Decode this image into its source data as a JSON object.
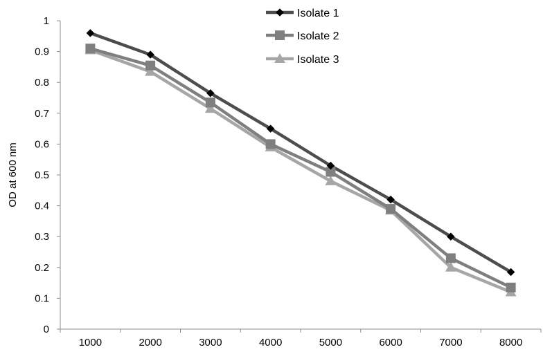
{
  "chart_data": {
    "type": "line",
    "title": "",
    "xlabel": "",
    "ylabel": "OD at  600 nm",
    "categories": [
      "1000",
      "2000",
      "3000",
      "4000",
      "5000",
      "6000",
      "7000",
      "8000"
    ],
    "y_ticks": [
      "0",
      "0.1",
      "0.2",
      "0.3",
      "0.4",
      "0.5",
      "0.6",
      "0.7",
      "0.8",
      "0.9",
      "1"
    ],
    "ylim": [
      0,
      1
    ],
    "grid": false,
    "legend_position": "top",
    "series": [
      {
        "name": "Isolate 1",
        "values": [
          0.96,
          0.89,
          0.765,
          0.65,
          0.53,
          0.42,
          0.3,
          0.185
        ],
        "color": "#4d4d4d",
        "marker": "diamond"
      },
      {
        "name": "Isolate 2",
        "values": [
          0.91,
          0.855,
          0.735,
          0.6,
          0.51,
          0.39,
          0.23,
          0.135
        ],
        "color": "#7f7f7f",
        "marker": "square"
      },
      {
        "name": "Isolate 3",
        "values": [
          0.905,
          0.835,
          0.715,
          0.59,
          0.48,
          0.385,
          0.2,
          0.12
        ],
        "color": "#a6a6a6",
        "marker": "triangle"
      }
    ]
  }
}
